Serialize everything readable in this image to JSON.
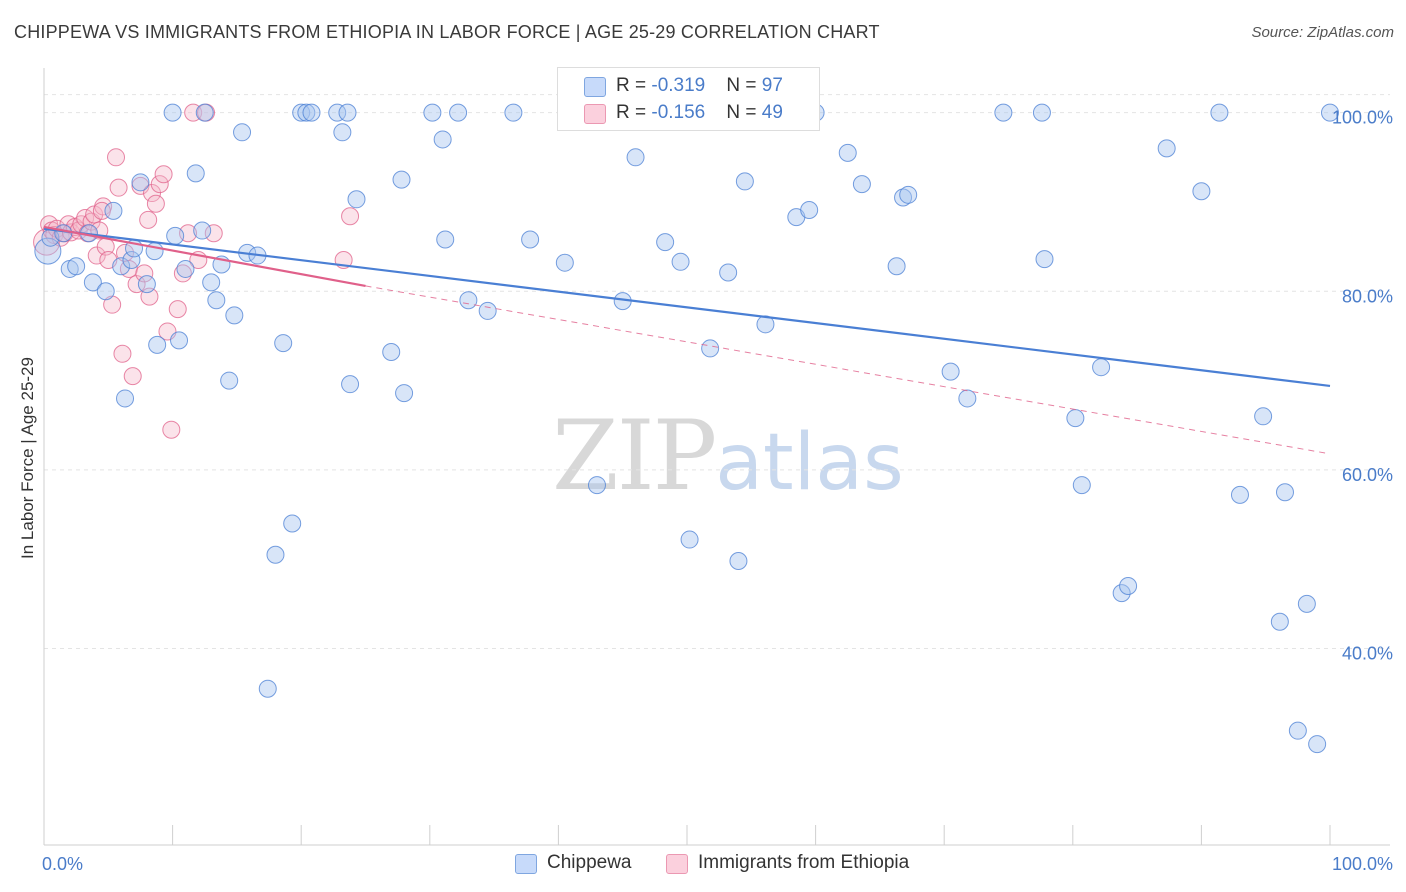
{
  "header": {
    "title": "CHIPPEWA VS IMMIGRANTS FROM ETHIOPIA IN LABOR FORCE | AGE 25-29 CORRELATION CHART",
    "source": "Source: ZipAtlas.com"
  },
  "watermark": {
    "zip": "ZIP",
    "atlas": "atlas"
  },
  "legend": {
    "rows": [
      {
        "r_label": "R = ",
        "r_value": "-0.319",
        "n_label": "N = ",
        "n_value": "97",
        "color": "#a9c6ef"
      },
      {
        "r_label": "R = ",
        "r_value": "-0.156",
        "n_label": "N = ",
        "n_value": "49",
        "color": "#f6b8cb"
      }
    ]
  },
  "bottom_legend": [
    {
      "label": "Chippewa",
      "color": "#a9c6ef"
    },
    {
      "label": "Immigrants from Ethiopia",
      "color": "#f6b8cb"
    }
  ],
  "chart_data": {
    "type": "scatter",
    "ylabel": "In Labor Force | Age 25-29",
    "xlim": [
      0,
      100
    ],
    "ylim": [
      18,
      105
    ],
    "x_tick_labels": [
      "0.0%",
      "100.0%"
    ],
    "y_ticks": [
      {
        "value": 40,
        "label": "40.0%"
      },
      {
        "value": 60,
        "label": "60.0%"
      },
      {
        "value": 80,
        "label": "80.0%"
      },
      {
        "value": 100,
        "label": "100.0%"
      }
    ],
    "grid": true,
    "series": [
      {
        "name": "Chippewa",
        "color": "#4a7fd4",
        "fill": "rgba(169,198,239,0.45)",
        "points": [
          [
            0.3,
            84.5
          ],
          [
            0.5,
            86
          ],
          [
            1.5,
            86.5
          ],
          [
            2,
            82.5
          ],
          [
            2.5,
            82.8
          ],
          [
            3.5,
            86.5
          ],
          [
            3.8,
            81
          ],
          [
            4.8,
            80
          ],
          [
            5.4,
            89
          ],
          [
            6,
            82.8
          ],
          [
            6.3,
            68
          ],
          [
            6.8,
            83.5
          ],
          [
            7,
            84.8
          ],
          [
            7.5,
            92.2
          ],
          [
            8,
            80.8
          ],
          [
            8.6,
            84.5
          ],
          [
            8.8,
            74
          ],
          [
            10,
            100
          ],
          [
            10.2,
            86.2
          ],
          [
            10.5,
            74.5
          ],
          [
            11,
            82.5
          ],
          [
            11.8,
            93.2
          ],
          [
            12.3,
            86.8
          ],
          [
            12.5,
            100
          ],
          [
            13,
            81
          ],
          [
            13.4,
            79
          ],
          [
            13.8,
            83
          ],
          [
            14.4,
            70
          ],
          [
            14.8,
            77.3
          ],
          [
            15.4,
            97.8
          ],
          [
            15.8,
            84.3
          ],
          [
            16.6,
            84
          ],
          [
            17.4,
            35.5
          ],
          [
            18,
            50.5
          ],
          [
            18.6,
            74.2
          ],
          [
            19.3,
            54
          ],
          [
            20,
            100
          ],
          [
            20.4,
            100
          ],
          [
            20.8,
            100
          ],
          [
            22.8,
            100
          ],
          [
            23.2,
            97.8
          ],
          [
            23.6,
            100
          ],
          [
            23.8,
            69.6
          ],
          [
            24.3,
            90.3
          ],
          [
            27,
            73.2
          ],
          [
            27.8,
            92.5
          ],
          [
            28,
            68.6
          ],
          [
            30.2,
            100
          ],
          [
            31,
            97
          ],
          [
            31.2,
            85.8
          ],
          [
            32.2,
            100
          ],
          [
            33,
            79
          ],
          [
            34.5,
            77.8
          ],
          [
            36.5,
            100
          ],
          [
            37.8,
            85.8
          ],
          [
            40.5,
            83.2
          ],
          [
            43,
            58.3
          ],
          [
            45,
            78.9
          ],
          [
            46,
            95
          ],
          [
            48,
            100
          ],
          [
            48.3,
            85.5
          ],
          [
            49.5,
            83.3
          ],
          [
            50.2,
            52.2
          ],
          [
            51.8,
            73.6
          ],
          [
            52.8,
            100
          ],
          [
            53.2,
            82.1
          ],
          [
            54,
            49.8
          ],
          [
            54.5,
            92.3
          ],
          [
            56.1,
            76.3
          ],
          [
            58.5,
            88.3
          ],
          [
            59.5,
            89.1
          ],
          [
            60,
            100
          ],
          [
            62.5,
            95.5
          ],
          [
            63.6,
            92
          ],
          [
            66.3,
            82.8
          ],
          [
            66.8,
            90.5
          ],
          [
            67.2,
            90.8
          ],
          [
            70.5,
            71
          ],
          [
            71.8,
            68
          ],
          [
            74.6,
            100
          ],
          [
            77.6,
            100
          ],
          [
            77.8,
            83.6
          ],
          [
            80.2,
            65.8
          ],
          [
            80.7,
            58.3
          ],
          [
            82.2,
            71.5
          ],
          [
            83.8,
            46.2
          ],
          [
            84.3,
            47
          ],
          [
            87.3,
            96
          ],
          [
            90,
            91.2
          ],
          [
            91.4,
            100
          ],
          [
            93,
            57.2
          ],
          [
            94.8,
            66
          ],
          [
            96.1,
            43
          ],
          [
            96.5,
            57.5
          ],
          [
            97.5,
            30.8
          ],
          [
            98.2,
            45
          ],
          [
            99,
            29.3
          ],
          [
            100,
            100
          ]
        ]
      },
      {
        "name": "Immigrants from Ethiopia",
        "color": "#e0608a",
        "fill": "rgba(246,184,203,0.40)",
        "points": [
          [
            0.2,
            85.5
          ],
          [
            0.4,
            87.5
          ],
          [
            0.6,
            86.8
          ],
          [
            0.8,
            86.3
          ],
          [
            1,
            87
          ],
          [
            1.3,
            86
          ],
          [
            1.6,
            86.5
          ],
          [
            1.9,
            87.5
          ],
          [
            2.1,
            86.6
          ],
          [
            2.4,
            87.2
          ],
          [
            2.7,
            86.8
          ],
          [
            2.9,
            87.5
          ],
          [
            3.2,
            88.2
          ],
          [
            3.4,
            86.5
          ],
          [
            3.7,
            87.8
          ],
          [
            3.9,
            88.6
          ],
          [
            4.1,
            84
          ],
          [
            4.3,
            86.8
          ],
          [
            4.6,
            89.5
          ],
          [
            4.8,
            85
          ],
          [
            5,
            83.5
          ],
          [
            5.3,
            78.5
          ],
          [
            5.6,
            95
          ],
          [
            5.8,
            91.6
          ],
          [
            6.1,
            73
          ],
          [
            6.3,
            84.3
          ],
          [
            6.6,
            82.5
          ],
          [
            6.9,
            70.5
          ],
          [
            7.2,
            80.8
          ],
          [
            7.5,
            91.8
          ],
          [
            7.8,
            82
          ],
          [
            8.1,
            88
          ],
          [
            8.4,
            91
          ],
          [
            8.7,
            89.8
          ],
          [
            9,
            92
          ],
          [
            9.3,
            93.1
          ],
          [
            9.6,
            75.5
          ],
          [
            9.9,
            64.5
          ],
          [
            10.4,
            78
          ],
          [
            10.8,
            82
          ],
          [
            11.2,
            86.5
          ],
          [
            11.6,
            100
          ],
          [
            12,
            83.5
          ],
          [
            12.6,
            100
          ],
          [
            13.2,
            86.5
          ],
          [
            23.3,
            83.5
          ],
          [
            23.8,
            88.4
          ],
          [
            8.2,
            79.4
          ],
          [
            4.5,
            89
          ]
        ]
      }
    ],
    "trendlines": [
      {
        "series": "Chippewa",
        "x1": 0,
        "y1": 87,
        "x2": 100,
        "y2": 69.4,
        "style": "solid"
      },
      {
        "series": "Immigrants from Ethiopia",
        "x1": 0,
        "y1": 87.2,
        "x2": 25,
        "y2": 80.6,
        "style": "solid"
      },
      {
        "series": "Immigrants from Ethiopia",
        "x1": 25,
        "y1": 80.6,
        "x2": 100,
        "y2": 61.8,
        "style": "dashed"
      }
    ]
  }
}
